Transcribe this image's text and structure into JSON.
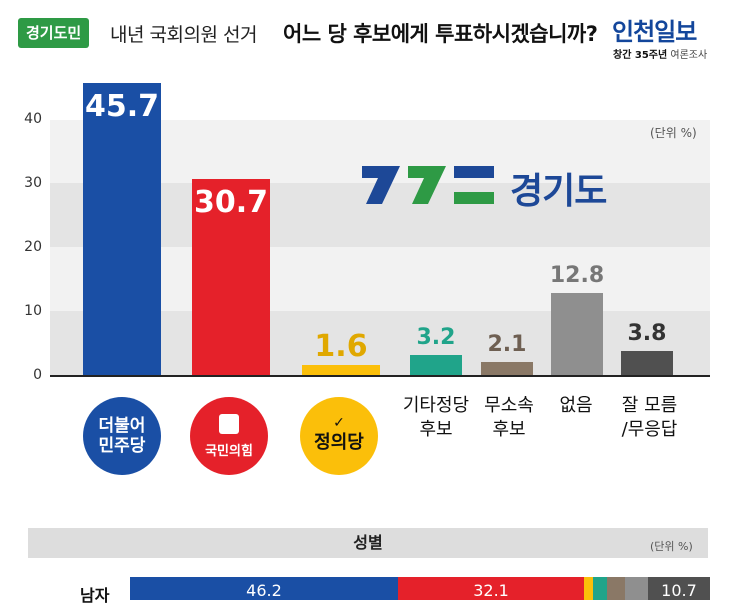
{
  "header": {
    "tag": "경기도민",
    "question_pre": "내년 국회의원 선거",
    "question_main": "어느 당 후보에게 투표하시겠습니까?",
    "brand": "인천일보",
    "brand_sub_bold": "창간 35주년",
    "brand_sub": "여론조사"
  },
  "logo": {
    "text": "경기도"
  },
  "colors": {
    "democratic": "#1a4fa5",
    "ppp": "#e5212a",
    "justice": "#fbbf0a",
    "other": "#20a48a",
    "independent": "#8a7866",
    "none": "#8f8f8f",
    "unknown": "#505050"
  },
  "chart_data": [
    {
      "type": "bar",
      "unit_label": "(단위 %)",
      "ylim": [
        0,
        50
      ],
      "yticks": [
        "0",
        "10",
        "20",
        "30",
        "40"
      ],
      "categories": [
        "더불어 민주당",
        "국민의힘",
        "정의당",
        "기타정당 후보",
        "무소속 후보",
        "없음",
        "잘 모름 /무응답"
      ],
      "values": [
        45.7,
        30.7,
        1.6,
        3.2,
        2.1,
        12.8,
        3.8
      ],
      "value_labels": [
        "45.7",
        "30.7",
        "1.6",
        "3.2",
        "2.1",
        "12.8",
        "3.8"
      ]
    },
    {
      "type": "bar",
      "orientation": "horizontal-stacked",
      "section_title": "성별",
      "unit_label": "(단위 %)",
      "row_label": "남자",
      "values": [
        46.2,
        32.1,
        1.6,
        2.4,
        3.1,
        3.9,
        10.7
      ],
      "value_labels": [
        "46.2",
        "32.1",
        "",
        "",
        "",
        "",
        "10.7"
      ]
    }
  ],
  "labels": {
    "cat_other": [
      "기타정당",
      "후보"
    ],
    "cat_indep": [
      "무소속",
      "후보"
    ],
    "cat_none": [
      "없음"
    ],
    "cat_unknown": [
      "잘 모름",
      "/무응답"
    ],
    "logo_dem": [
      "더불어",
      "민주당"
    ],
    "logo_ppp": "국민의힘",
    "logo_justice": "정의당"
  }
}
